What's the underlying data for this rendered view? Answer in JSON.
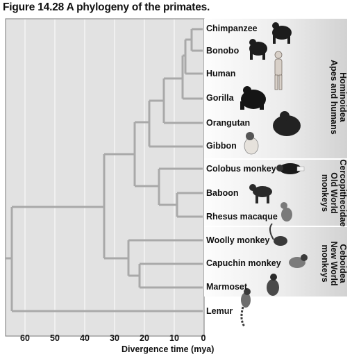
{
  "figure_title": "Figure 14.28  A phylogeny of the primates.",
  "axis": {
    "label": "Divergence time (mya)",
    "ticks": [
      "60",
      "50",
      "40",
      "30",
      "20",
      "10",
      "0"
    ]
  },
  "taxa": [
    "Chimpanzee",
    "Bonobo",
    "Human",
    "Gorilla",
    "Orangutan",
    "Gibbon",
    "Colobus monkey",
    "Baboon",
    "Rhesus macaque",
    "Woolly monkey",
    "Capuchin monkey",
    "Marmoset",
    "Lemur"
  ],
  "groups": [
    {
      "name": "Hominoidea",
      "subtitle": "Apes and humans"
    },
    {
      "name": "Cercopithecidae",
      "subtitle": "Old World monkeys"
    },
    {
      "name": "Ceboidea",
      "subtitle": "New World monkeys"
    }
  ],
  "colors": {
    "plot_background": "#e2e2e2",
    "grid": "#f7f7f7",
    "branch": "#a9a9a9",
    "group_band_light": "#fdfdfd",
    "group_band_dark": "#d2d2d2"
  }
}
